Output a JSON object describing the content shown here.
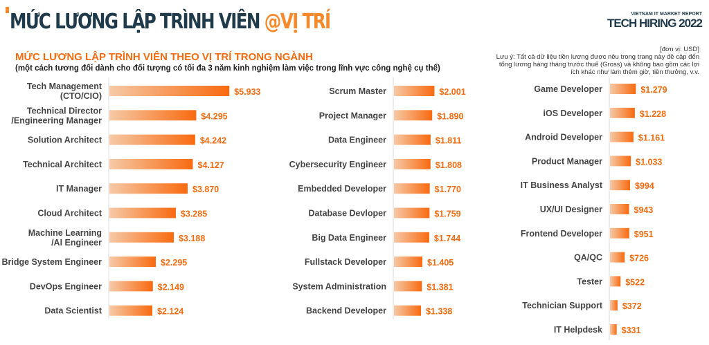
{
  "header": {
    "title_main": "MỨC LƯƠNG LẬP TRÌNH VIÊN ",
    "title_highlight": "@VỊ TRÍ",
    "report_small": "VIETNAM IT MARKET REPORT",
    "report_big": "TECH HIRING 2022"
  },
  "chart_data": {
    "type": "bar",
    "title": "MỨC LƯƠNG LẬP TRÌNH VIÊN THEO VỊ TRÍ TRONG NGÀNH",
    "subtitle": "(một cách tương đối dành cho đối tượng có tối đa 3 năm kinh nghiệm làm việc trong lĩnh vực công nghệ cụ thể)",
    "unit": "[đơn vị: USD]",
    "note": "Lưu ý: Tất cả dữ liệu tiền lương được nêu trong trang này đề cập đến tổng lương hàng tháng trước thuế (Gross) và không bao gồm các lợi ích khác như làm thêm giờ, tiền thưởng, v.v.",
    "accent": "#f36b10",
    "columns": [
      {
        "items": [
          {
            "label": [
              "Tech Management",
              "(CTO/CIO)"
            ],
            "value": 5933,
            "text": "$5.933"
          },
          {
            "label": [
              "Technical Director",
              "/Engineering Manager"
            ],
            "value": 4295,
            "text": "$4.295"
          },
          {
            "label": [
              "Solution Architect"
            ],
            "value": 4242,
            "text": "$4.242"
          },
          {
            "label": [
              "Technical Architect"
            ],
            "value": 4127,
            "text": "$4.127"
          },
          {
            "label": [
              "IT Manager"
            ],
            "value": 3870,
            "text": "$3.870"
          },
          {
            "label": [
              "Cloud Architect"
            ],
            "value": 3285,
            "text": "$3.285"
          },
          {
            "label": [
              "Machine Learning",
              "/AI Engineer"
            ],
            "value": 3188,
            "text": "$3.188"
          },
          {
            "label": [
              "Bridge System Engineer"
            ],
            "value": 2295,
            "text": "$2.295"
          },
          {
            "label": [
              "DevOps Engineer"
            ],
            "value": 2149,
            "text": "$2.149"
          },
          {
            "label": [
              "Data Scientist"
            ],
            "value": 2124,
            "text": "$2.124"
          }
        ]
      },
      {
        "items": [
          {
            "label": [
              "Scrum Master"
            ],
            "value": 2001,
            "text": "$2.001"
          },
          {
            "label": [
              "Project Manager"
            ],
            "value": 1890,
            "text": "$1.890"
          },
          {
            "label": [
              "Data Engineer"
            ],
            "value": 1811,
            "text": "$1.811"
          },
          {
            "label": [
              "Cybersecurity Engineer"
            ],
            "value": 1808,
            "text": "$1.808"
          },
          {
            "label": [
              "Embedded Developer"
            ],
            "value": 1770,
            "text": "$1.770"
          },
          {
            "label": [
              "Database Devloper"
            ],
            "value": 1759,
            "text": "$1.759"
          },
          {
            "label": [
              "Big Data Engineer"
            ],
            "value": 1744,
            "text": "$1.744"
          },
          {
            "label": [
              "Fullstack Developer"
            ],
            "value": 1405,
            "text": "$1.405"
          },
          {
            "label": [
              "System Administration"
            ],
            "value": 1381,
            "text": "$1.381"
          },
          {
            "label": [
              "Backend Developer"
            ],
            "value": 1338,
            "text": "$1.338"
          }
        ]
      },
      {
        "items": [
          {
            "label": [
              "Game Developer"
            ],
            "value": 1279,
            "text": "$1.279"
          },
          {
            "label": [
              "iOS Developer"
            ],
            "value": 1228,
            "text": "$1.228"
          },
          {
            "label": [
              "Android Developer"
            ],
            "value": 1161,
            "text": "$1.161"
          },
          {
            "label": [
              "Product Manager"
            ],
            "value": 1033,
            "text": "$1.033"
          },
          {
            "label": [
              "IT Business Analyst"
            ],
            "value": 994,
            "text": "$994"
          },
          {
            "label": [
              "UX/UI Designer"
            ],
            "value": 943,
            "text": "$943"
          },
          {
            "label": [
              "Frontend Developer"
            ],
            "value": 951,
            "text": "$951"
          },
          {
            "label": [
              "QA/QC"
            ],
            "value": 726,
            "text": "$726"
          },
          {
            "label": [
              "Tester"
            ],
            "value": 522,
            "text": "$522"
          },
          {
            "label": [
              "Technician Support"
            ],
            "value": 372,
            "text": "$372"
          },
          {
            "label": [
              "IT Helpdesk"
            ],
            "value": 331,
            "text": "$331"
          }
        ]
      }
    ]
  }
}
